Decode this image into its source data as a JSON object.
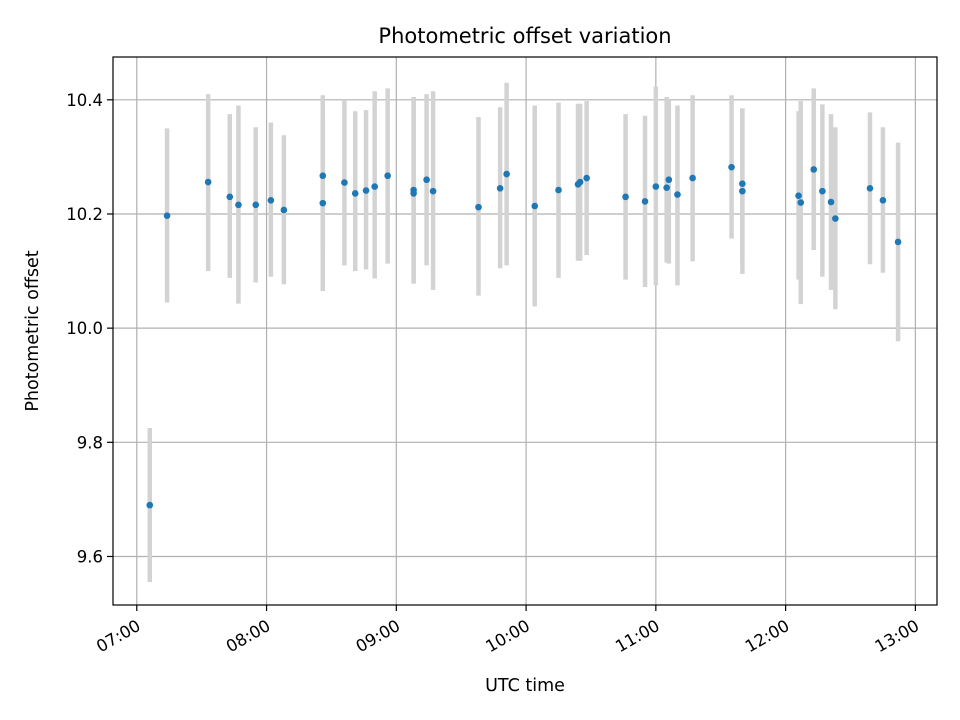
{
  "chart_data": {
    "type": "scatter",
    "title": "Photometric offset variation",
    "xlabel": "UTC time",
    "ylabel": "Photometric offset",
    "x_unit": "HH:MM UTC",
    "xlim": [
      "06:49",
      "13:10"
    ],
    "ylim": [
      9.515,
      10.475
    ],
    "x_ticks": [
      "07:00",
      "08:00",
      "09:00",
      "10:00",
      "11:00",
      "12:00",
      "13:00"
    ],
    "y_ticks": [
      9.6,
      9.8,
      10.0,
      10.2,
      10.4
    ],
    "y_tick_labels": [
      "9.6",
      "9.8",
      "10.0",
      "10.2",
      "10.4"
    ],
    "grid": true,
    "marker_color": "#1f77b4",
    "errorbar_color": "#d3d3d3",
    "points": [
      {
        "x": "07:06",
        "y": 9.69,
        "lo": 9.555,
        "hi": 9.825
      },
      {
        "x": "07:14",
        "y": 10.197,
        "lo": 10.045,
        "hi": 10.35
      },
      {
        "x": "07:33",
        "y": 10.256,
        "lo": 10.1,
        "hi": 10.41
      },
      {
        "x": "07:43",
        "y": 10.23,
        "lo": 10.088,
        "hi": 10.375
      },
      {
        "x": "07:47",
        "y": 10.216,
        "lo": 10.043,
        "hi": 10.39
      },
      {
        "x": "07:55",
        "y": 10.216,
        "lo": 10.08,
        "hi": 10.352
      },
      {
        "x": "08:02",
        "y": 10.224,
        "lo": 10.09,
        "hi": 10.36
      },
      {
        "x": "08:08",
        "y": 10.207,
        "lo": 10.077,
        "hi": 10.338
      },
      {
        "x": "08:26",
        "y": 10.267,
        "lo": 10.128,
        "hi": 10.408
      },
      {
        "x": "08:26",
        "y": 10.219,
        "lo": 10.065,
        "hi": 10.375
      },
      {
        "x": "08:36",
        "y": 10.255,
        "lo": 10.11,
        "hi": 10.4
      },
      {
        "x": "08:41",
        "y": 10.236,
        "lo": 10.1,
        "hi": 10.38
      },
      {
        "x": "08:46",
        "y": 10.241,
        "lo": 10.103,
        "hi": 10.382
      },
      {
        "x": "08:50",
        "y": 10.248,
        "lo": 10.087,
        "hi": 10.415
      },
      {
        "x": "08:56",
        "y": 10.267,
        "lo": 10.113,
        "hi": 10.42
      },
      {
        "x": "09:08",
        "y": 10.242,
        "lo": 10.078,
        "hi": 10.405
      },
      {
        "x": "09:08",
        "y": 10.236,
        "lo": 10.078,
        "hi": 10.405
      },
      {
        "x": "09:14",
        "y": 10.26,
        "lo": 10.11,
        "hi": 10.41
      },
      {
        "x": "09:17",
        "y": 10.24,
        "lo": 10.067,
        "hi": 10.415
      },
      {
        "x": "09:38",
        "y": 10.212,
        "lo": 10.057,
        "hi": 10.37
      },
      {
        "x": "09:48",
        "y": 10.245,
        "lo": 10.105,
        "hi": 10.387
      },
      {
        "x": "09:51",
        "y": 10.27,
        "lo": 10.11,
        "hi": 10.43
      },
      {
        "x": "10:04",
        "y": 10.214,
        "lo": 10.038,
        "hi": 10.39
      },
      {
        "x": "10:15",
        "y": 10.242,
        "lo": 10.088,
        "hi": 10.395
      },
      {
        "x": "10:24",
        "y": 10.252,
        "lo": 10.118,
        "hi": 10.393
      },
      {
        "x": "10:25",
        "y": 10.256,
        "lo": 10.118,
        "hi": 10.393
      },
      {
        "x": "10:28",
        "y": 10.263,
        "lo": 10.128,
        "hi": 10.398
      },
      {
        "x": "10:46",
        "y": 10.23,
        "lo": 10.085,
        "hi": 10.375
      },
      {
        "x": "10:55",
        "y": 10.222,
        "lo": 10.072,
        "hi": 10.372
      },
      {
        "x": "11:00",
        "y": 10.248,
        "lo": 10.075,
        "hi": 10.423
      },
      {
        "x": "11:05",
        "y": 10.246,
        "lo": 10.115,
        "hi": 10.405
      },
      {
        "x": "11:06",
        "y": 10.26,
        "lo": 10.113,
        "hi": 10.4
      },
      {
        "x": "11:10",
        "y": 10.234,
        "lo": 10.075,
        "hi": 10.39
      },
      {
        "x": "11:17",
        "y": 10.263,
        "lo": 10.117,
        "hi": 10.408
      },
      {
        "x": "11:35",
        "y": 10.282,
        "lo": 10.157,
        "hi": 10.408
      },
      {
        "x": "11:40",
        "y": 10.253,
        "lo": 10.12,
        "hi": 10.385
      },
      {
        "x": "11:40",
        "y": 10.24,
        "lo": 10.095,
        "hi": 10.385
      },
      {
        "x": "12:06",
        "y": 10.232,
        "lo": 10.085,
        "hi": 10.38
      },
      {
        "x": "12:07",
        "y": 10.22,
        "lo": 10.042,
        "hi": 10.398
      },
      {
        "x": "12:13",
        "y": 10.278,
        "lo": 10.137,
        "hi": 10.42
      },
      {
        "x": "12:17",
        "y": 10.24,
        "lo": 10.09,
        "hi": 10.392
      },
      {
        "x": "12:21",
        "y": 10.221,
        "lo": 10.067,
        "hi": 10.375
      },
      {
        "x": "12:23",
        "y": 10.192,
        "lo": 10.033,
        "hi": 10.352
      },
      {
        "x": "12:39",
        "y": 10.245,
        "lo": 10.112,
        "hi": 10.378
      },
      {
        "x": "12:45",
        "y": 10.224,
        "lo": 10.097,
        "hi": 10.352
      },
      {
        "x": "12:52",
        "y": 10.151,
        "lo": 9.977,
        "hi": 10.325
      }
    ]
  }
}
